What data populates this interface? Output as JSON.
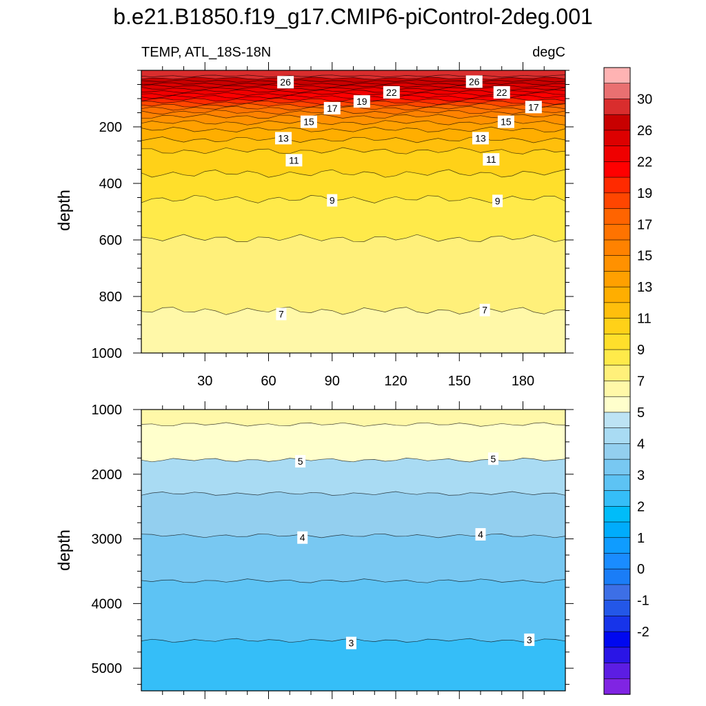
{
  "chart_data": {
    "type": "heatmap",
    "title": "b.e21.B1850.f19_g17.CMIP6-piControl-2deg.001",
    "subtitle_left": "TEMP, ATL_18S-18N",
    "subtitle_right": "degC",
    "xlim": [
      0,
      200
    ],
    "x_ticks": [
      30,
      60,
      90,
      120,
      150,
      180
    ],
    "x_tick_labels": [
      "30",
      "60",
      "90",
      "120",
      "150",
      "180"
    ],
    "panels": [
      {
        "name": "upper",
        "ylabel": "depth",
        "ylim": [
          0,
          1000
        ],
        "y_ticks": [
          200,
          400,
          600,
          800,
          1000
        ],
        "y_tick_labels": [
          "200",
          "400",
          "600",
          "800",
          "1000"
        ],
        "contour_depths": [
          {
            "level": 29,
            "depth": 20
          },
          {
            "level": 28,
            "depth": 28
          },
          {
            "level": 27,
            "depth": 38
          },
          {
            "level": 26,
            "depth": 48
          },
          {
            "level": 25,
            "depth": 56
          },
          {
            "level": 24,
            "depth": 65
          },
          {
            "level": 23,
            "depth": 74
          },
          {
            "level": 22,
            "depth": 84
          },
          {
            "level": 21,
            "depth": 94
          },
          {
            "level": 20,
            "depth": 104
          },
          {
            "level": 19,
            "depth": 114
          },
          {
            "level": 18,
            "depth": 124
          },
          {
            "level": 17,
            "depth": 134
          },
          {
            "level": 16,
            "depth": 148
          },
          {
            "level": 15,
            "depth": 163
          },
          {
            "level": 14,
            "depth": 185
          },
          {
            "level": 13,
            "depth": 210
          },
          {
            "level": 12,
            "depth": 245
          },
          {
            "level": 11,
            "depth": 285
          },
          {
            "level": 10,
            "depth": 365
          },
          {
            "level": 9,
            "depth": 455
          },
          {
            "level": 8,
            "depth": 595
          },
          {
            "level": 7,
            "depth": 850
          }
        ],
        "labels": [
          {
            "text": "26",
            "x": 68,
            "depth": 42
          },
          {
            "text": "26",
            "x": 157,
            "depth": 40
          },
          {
            "text": "22",
            "x": 118,
            "depth": 78
          },
          {
            "text": "22",
            "x": 170,
            "depth": 78
          },
          {
            "text": "19",
            "x": 104,
            "depth": 110
          },
          {
            "text": "17",
            "x": 90,
            "depth": 134
          },
          {
            "text": "17",
            "x": 185,
            "depth": 130
          },
          {
            "text": "15",
            "x": 79,
            "depth": 182
          },
          {
            "text": "15",
            "x": 172,
            "depth": 182
          },
          {
            "text": "13",
            "x": 67,
            "depth": 240
          },
          {
            "text": "13",
            "x": 160,
            "depth": 240
          },
          {
            "text": "11",
            "x": 72,
            "depth": 318
          },
          {
            "text": "11",
            "x": 165,
            "depth": 315
          },
          {
            "text": "9",
            "x": 90,
            "depth": 460
          },
          {
            "text": "9",
            "x": 168,
            "depth": 462
          },
          {
            "text": "7",
            "x": 66,
            "depth": 862
          },
          {
            "text": "7",
            "x": 162,
            "depth": 848
          }
        ]
      },
      {
        "name": "lower",
        "ylabel": "depth",
        "ylim": [
          1000,
          5350
        ],
        "y_ticks": [
          1000,
          2000,
          3000,
          4000,
          5000
        ],
        "y_tick_labels": [
          "1000",
          "2000",
          "3000",
          "4000",
          "5000"
        ],
        "contour_depths": [
          {
            "level": 6,
            "depth": 1230
          },
          {
            "level": 5,
            "depth": 1780
          },
          {
            "level": 4.5,
            "depth": 2300
          },
          {
            "level": 4,
            "depth": 2950
          },
          {
            "level": 3.5,
            "depth": 3650
          },
          {
            "level": 3,
            "depth": 4570
          }
        ],
        "labels": [
          {
            "text": "5",
            "x": 75,
            "depth": 1800
          },
          {
            "text": "5",
            "x": 166,
            "depth": 1760
          },
          {
            "text": "4",
            "x": 76,
            "depth": 2980
          },
          {
            "text": "4",
            "x": 160,
            "depth": 2930
          },
          {
            "text": "3",
            "x": 99,
            "depth": 4610
          },
          {
            "text": "3",
            "x": 183,
            "depth": 4560
          }
        ]
      }
    ],
    "colorbar": {
      "levels": [
        -2.5,
        -2,
        -1.5,
        -1,
        -0.5,
        0,
        0.5,
        1,
        1.5,
        2,
        2.5,
        3,
        3.5,
        4,
        4.5,
        5,
        5.5,
        6,
        7,
        8,
        9,
        10,
        11,
        12,
        13,
        14,
        15,
        16,
        17,
        18,
        19,
        20,
        22,
        24,
        26,
        28,
        30,
        32
      ],
      "colors": [
        "#ffb3b3",
        "#e97071",
        "#d92d2d",
        "#c80000",
        "#dd0000",
        "#ef0000",
        "#ff0000",
        "#ff2a00",
        "#ff4600",
        "#ff6400",
        "#ff7300",
        "#ff8200",
        "#ff9100",
        "#ffa000",
        "#ffae00",
        "#ffbf0c",
        "#ffd118",
        "#ffdf2b",
        "#ffea4a",
        "#fff07a",
        "#fff8a8",
        "#ffffcc",
        "#bde3f4",
        "#a9dbf3",
        "#93cfef",
        "#78c8f2",
        "#5dc3f4",
        "#35bef8",
        "#00bcf9",
        "#00acfc",
        "#0f9cff",
        "#1a8cff",
        "#1a7df7",
        "#3d6fe6",
        "#2357e8",
        "#1734ea",
        "#0008f0",
        "#2a15e6",
        "#5c1de3",
        "#8024e3"
      ],
      "labels": [
        "30",
        "26",
        "22",
        "19",
        "17",
        "15",
        "13",
        "11",
        "9",
        "7",
        "5",
        "4",
        "3",
        "2",
        "1",
        "0",
        "-1",
        "-2"
      ]
    }
  }
}
